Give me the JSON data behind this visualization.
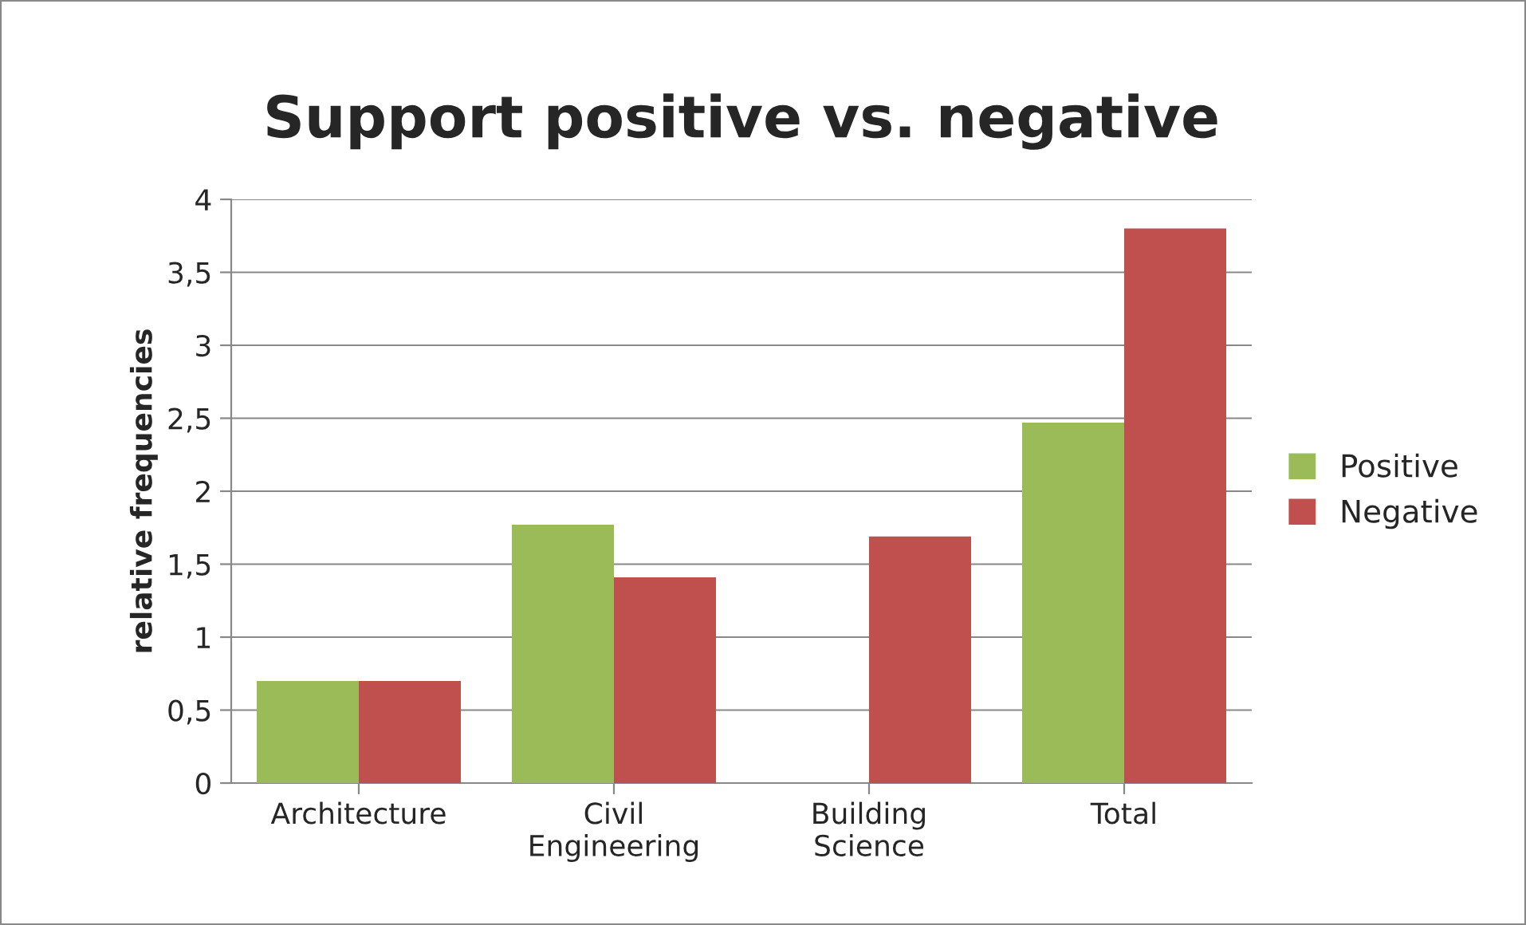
{
  "chart_data": {
    "type": "bar",
    "title": "Support positive vs. negative",
    "ylabel": "relative frequencies",
    "categories": [
      "Architecture",
      "Civil\nEngineering",
      "Building\nScience",
      "Total"
    ],
    "series": [
      {
        "name": "Positive",
        "color": "#9bbb59",
        "values": [
          0.7,
          1.77,
          0,
          2.47
        ]
      },
      {
        "name": "Negative",
        "color": "#c0504d",
        "values": [
          0.7,
          1.41,
          1.69,
          3.8
        ]
      }
    ],
    "ylim": [
      0,
      4
    ],
    "yticks": [
      0,
      {
        "value": 0.5,
        "label": "0,5"
      },
      1,
      {
        "value": 1.5,
        "label": "1,5"
      },
      2,
      {
        "value": 2.5,
        "label": "2,5"
      },
      3,
      {
        "value": 3.5,
        "label": "3,5"
      },
      4
    ],
    "grid": "y",
    "legend": "right"
  }
}
